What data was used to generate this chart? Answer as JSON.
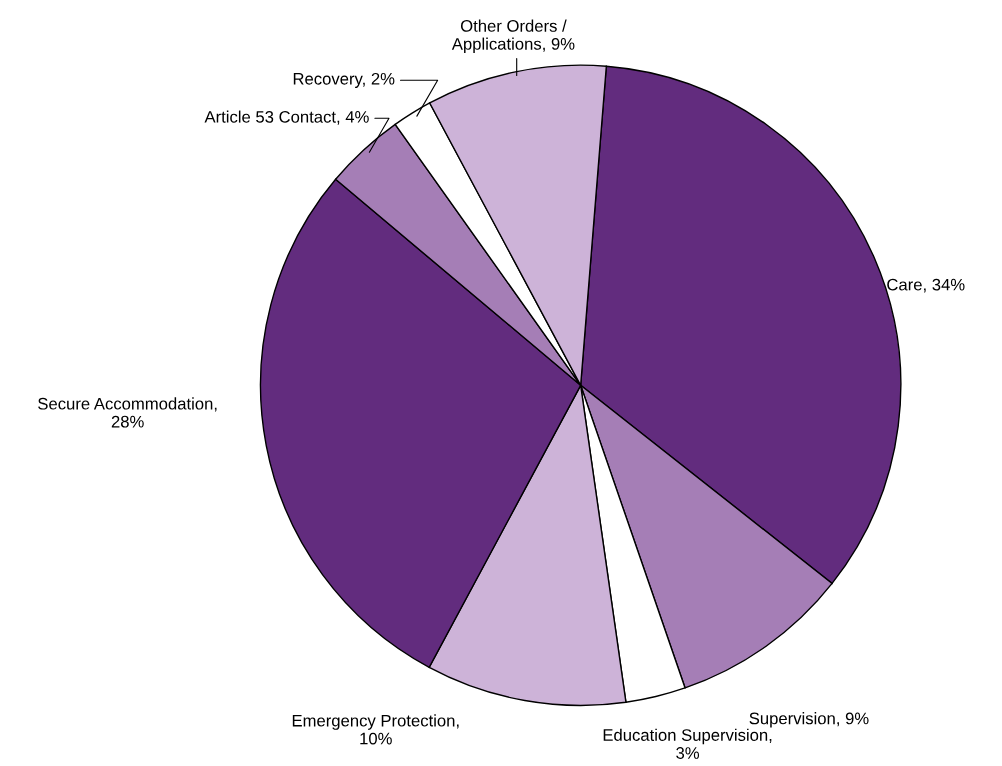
{
  "chart_data": {
    "type": "pie",
    "categories": [
      "Care, 34%",
      "Supervision, 9%",
      "Education Supervision, 3%",
      "Emergency Protection, 10%",
      "Secure Accommodation, 28%",
      "Article 53 Contact, 4%",
      "Recovery, 2%",
      "Other Orders / Applications, 9%"
    ],
    "values": [
      34,
      9,
      3,
      10,
      28,
      4,
      2,
      9
    ],
    "colors": [
      "#622c7e",
      "#a57eb6",
      "#ffffff",
      "#cdb3d8",
      "#622c7e",
      "#a57eb6",
      "#ffffff",
      "#cdb3d8"
    ]
  }
}
